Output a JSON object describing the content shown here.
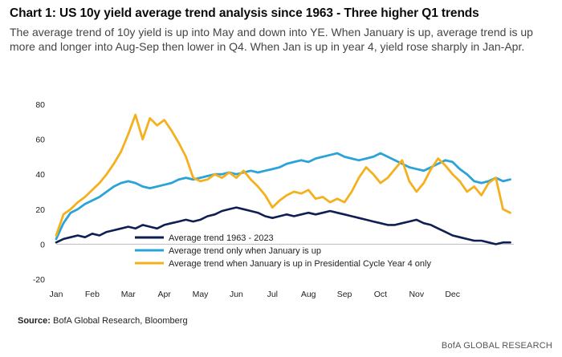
{
  "header": {
    "title": "Chart 1: US 10y yield average trend analysis since 1963 - Three higher Q1 trends",
    "subtitle": "The average trend of 10y yield is up into May and down into YE. When January is up, average trend is up more and longer into Aug-Sep then lower in Q4. When Jan is up in year 4, yield rose sharply in Jan-Apr."
  },
  "footer": {
    "source_label": "Source:",
    "source_text": " BofA Global Research, Bloomberg",
    "credit": "BofA GLOBAL RESEARCH"
  },
  "chart_data": {
    "type": "line",
    "title": "",
    "xlabel": "",
    "ylabel": "",
    "ylim": [
      -20,
      80
    ],
    "yticks": [
      -20,
      0,
      20,
      40,
      60,
      80
    ],
    "xlim": [
      0,
      12.7
    ],
    "xticks": [
      "Jan",
      "Feb",
      "Mar",
      "Apr",
      "May",
      "Jun",
      "Jul",
      "Aug",
      "Sep",
      "Oct",
      "Nov",
      "Dec"
    ],
    "grid": false,
    "legend": "inside-bottom-center",
    "series": [
      {
        "name": "Average trend 1963 - 2023",
        "color": "#0f1f52",
        "x": [
          0,
          0.2,
          0.4,
          0.6,
          0.8,
          1.0,
          1.2,
          1.4,
          1.6,
          1.8,
          2.0,
          2.2,
          2.4,
          2.6,
          2.8,
          3.0,
          3.2,
          3.4,
          3.6,
          3.8,
          4.0,
          4.2,
          4.4,
          4.6,
          4.8,
          5.0,
          5.2,
          5.4,
          5.6,
          5.8,
          6.0,
          6.2,
          6.4,
          6.6,
          6.8,
          7.0,
          7.2,
          7.4,
          7.6,
          7.8,
          8.0,
          8.2,
          8.4,
          8.6,
          8.8,
          9.0,
          9.2,
          9.4,
          9.6,
          9.8,
          10.0,
          10.2,
          10.4,
          10.6,
          10.8,
          11.0,
          11.2,
          11.4,
          11.6,
          11.8,
          12.0,
          12.2,
          12.4,
          12.6
        ],
        "values": [
          1,
          3,
          4,
          5,
          4,
          6,
          5,
          7,
          8,
          9,
          10,
          9,
          11,
          10,
          9,
          11,
          12,
          13,
          14,
          13,
          14,
          16,
          17,
          19,
          20,
          21,
          20,
          19,
          18,
          16,
          15,
          16,
          17,
          16,
          17,
          18,
          17,
          18,
          19,
          18,
          17,
          16,
          15,
          14,
          13,
          12,
          11,
          11,
          12,
          13,
          14,
          12,
          11,
          9,
          7,
          5,
          4,
          3,
          2,
          2,
          1,
          0,
          1,
          1
        ]
      },
      {
        "name": "Average trend only when January is up",
        "color": "#2aa3d8",
        "x": [
          0,
          0.2,
          0.4,
          0.6,
          0.8,
          1.0,
          1.2,
          1.4,
          1.6,
          1.8,
          2.0,
          2.2,
          2.4,
          2.6,
          2.8,
          3.0,
          3.2,
          3.4,
          3.6,
          3.8,
          4.0,
          4.2,
          4.4,
          4.6,
          4.8,
          5.0,
          5.2,
          5.4,
          5.6,
          5.8,
          6.0,
          6.2,
          6.4,
          6.6,
          6.8,
          7.0,
          7.2,
          7.4,
          7.6,
          7.8,
          8.0,
          8.2,
          8.4,
          8.6,
          8.8,
          9.0,
          9.2,
          9.4,
          9.6,
          9.8,
          10.0,
          10.2,
          10.4,
          10.6,
          10.8,
          11.0,
          11.2,
          11.4,
          11.6,
          11.8,
          12.0,
          12.2,
          12.4,
          12.6
        ],
        "values": [
          3,
          12,
          18,
          20,
          23,
          25,
          27,
          30,
          33,
          35,
          36,
          35,
          33,
          32,
          33,
          34,
          35,
          37,
          38,
          37,
          38,
          39,
          40,
          40,
          41,
          40,
          41,
          42,
          41,
          42,
          43,
          44,
          46,
          47,
          48,
          47,
          49,
          50,
          51,
          52,
          50,
          49,
          48,
          49,
          50,
          52,
          50,
          48,
          46,
          44,
          43,
          42,
          44,
          46,
          48,
          47,
          43,
          40,
          36,
          35,
          36,
          38,
          36,
          37
        ]
      },
      {
        "name": "Average trend when January is up in Presidential Cycle Year 4 only",
        "color": "#f5b01e",
        "x": [
          0,
          0.2,
          0.4,
          0.6,
          0.8,
          1.0,
          1.2,
          1.4,
          1.6,
          1.8,
          2.0,
          2.2,
          2.4,
          2.6,
          2.8,
          3.0,
          3.2,
          3.4,
          3.6,
          3.8,
          4.0,
          4.2,
          4.4,
          4.6,
          4.8,
          5.0,
          5.2,
          5.4,
          5.6,
          5.8,
          6.0,
          6.2,
          6.4,
          6.6,
          6.8,
          7.0,
          7.2,
          7.4,
          7.6,
          7.8,
          8.0,
          8.2,
          8.4,
          8.6,
          8.8,
          9.0,
          9.2,
          9.4,
          9.6,
          9.8,
          10.0,
          10.2,
          10.4,
          10.6,
          10.8,
          11.0,
          11.2,
          11.4,
          11.6,
          11.8,
          12.0,
          12.2,
          12.4,
          12.6
        ],
        "values": [
          5,
          17,
          20,
          24,
          27,
          31,
          35,
          40,
          46,
          53,
          63,
          74,
          60,
          72,
          68,
          71,
          65,
          58,
          50,
          38,
          36,
          37,
          40,
          38,
          41,
          38,
          42,
          37,
          33,
          28,
          21,
          25,
          28,
          30,
          29,
          31,
          26,
          27,
          24,
          26,
          24,
          30,
          38,
          44,
          40,
          35,
          38,
          43,
          48,
          36,
          30,
          35,
          43,
          49,
          45,
          40,
          36,
          30,
          33,
          28,
          35,
          38,
          20,
          18
        ]
      }
    ]
  }
}
